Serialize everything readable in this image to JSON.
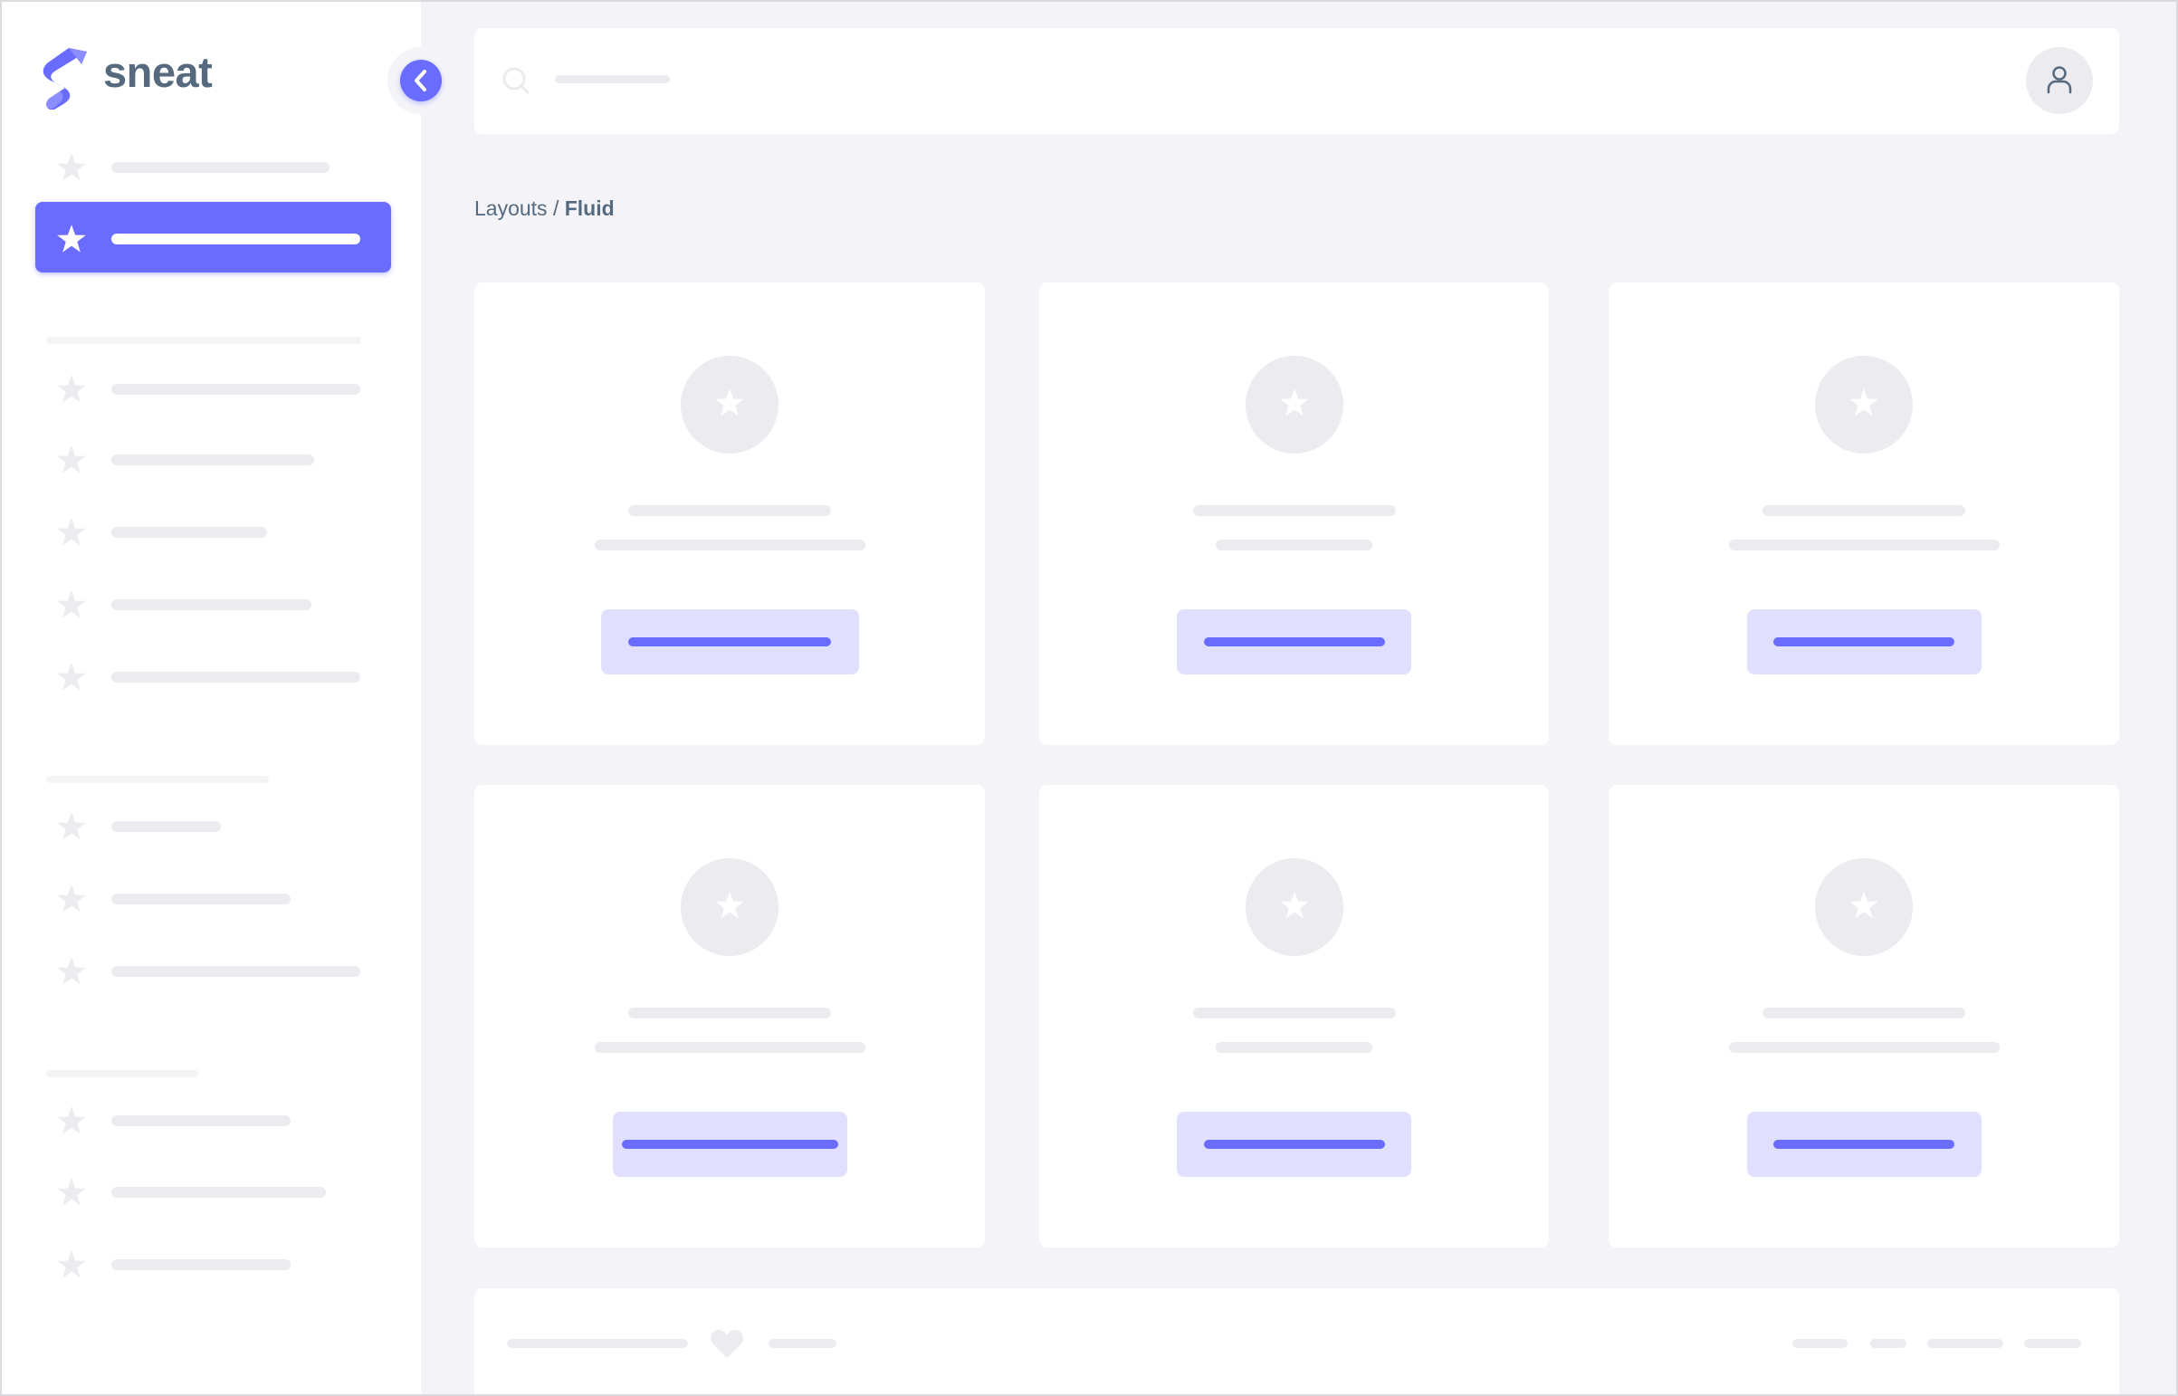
{
  "brand": {
    "name": "sneat",
    "logo_icon": "sneat-s-logo"
  },
  "breadcrumb": {
    "parent": "Layouts",
    "separator": " / ",
    "current": "Fluid"
  },
  "colors": {
    "primary": "#696cff",
    "primary_light": "#e0e0fe",
    "skeleton": "#ebebf0",
    "background": "#f4f4f8",
    "text": "#566a7f"
  },
  "sidebar": {
    "toggle_icon": "chevron-left-icon",
    "active_index": 1,
    "item_icon": "star-icon"
  },
  "navbar": {
    "search_icon": "search-icon",
    "user_icon": "user-icon"
  },
  "footer": {
    "icon": "heart-icon"
  }
}
